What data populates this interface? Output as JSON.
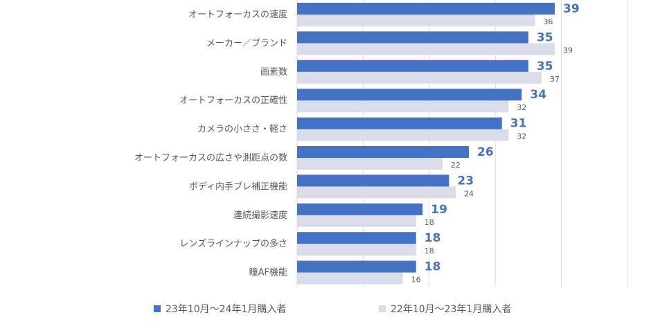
{
  "chart_data": {
    "type": "bar",
    "orientation": "horizontal",
    "categories": [
      "オートフォーカスの速度",
      "メーカー／ブランド",
      "画素数",
      "オートフォーカスの正確性",
      "カメラの小ささ・軽さ",
      "オートフォーカスの広さや測距点の数",
      "ボディ内手ブレ補正機能",
      "連続撮影速度",
      "レンズラインナップの多さ",
      "瞳AF機能"
    ],
    "series": [
      {
        "name": "23年10月～24年1月購入者",
        "color": "#4472C4",
        "values": [
          39,
          35,
          35,
          34,
          31,
          26,
          23,
          19,
          18,
          18
        ]
      },
      {
        "name": "22年10月～23年1月購入者",
        "color": "#DADDE9",
        "values": [
          36,
          39,
          37,
          32,
          32,
          22,
          24,
          18,
          18,
          16
        ]
      }
    ],
    "xlim": [
      0,
      50
    ],
    "grid": true,
    "legend_position": "bottom"
  }
}
